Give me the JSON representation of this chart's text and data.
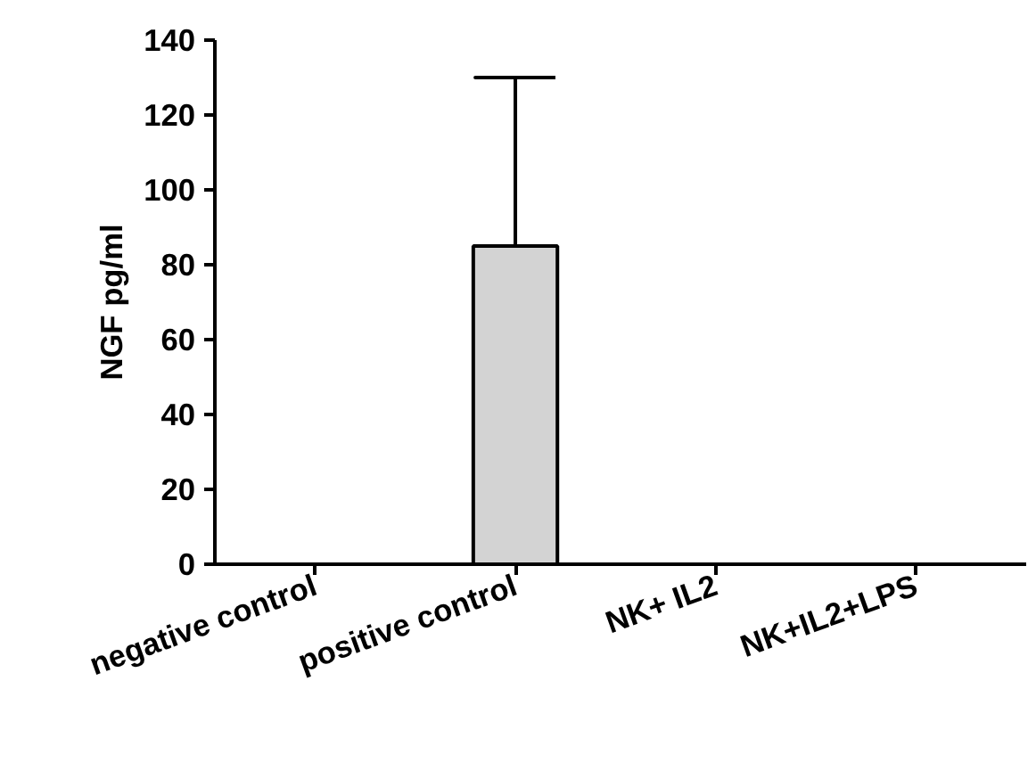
{
  "chart_data": {
    "type": "bar",
    "ylabel": "NGF pg/ml",
    "categories": [
      "negative control",
      "positive control",
      "NK+ IL2",
      "NK+IL2+LPS"
    ],
    "values": [
      0,
      85,
      0,
      0
    ],
    "color": "#d3d3d3",
    "errors": [
      null,
      [
        85,
        130
      ],
      null,
      null
    ],
    "ylim": [
      0,
      140
    ],
    "yticks": [
      0,
      20,
      40,
      60,
      80,
      100,
      120,
      140
    ],
    "grid": false
  }
}
